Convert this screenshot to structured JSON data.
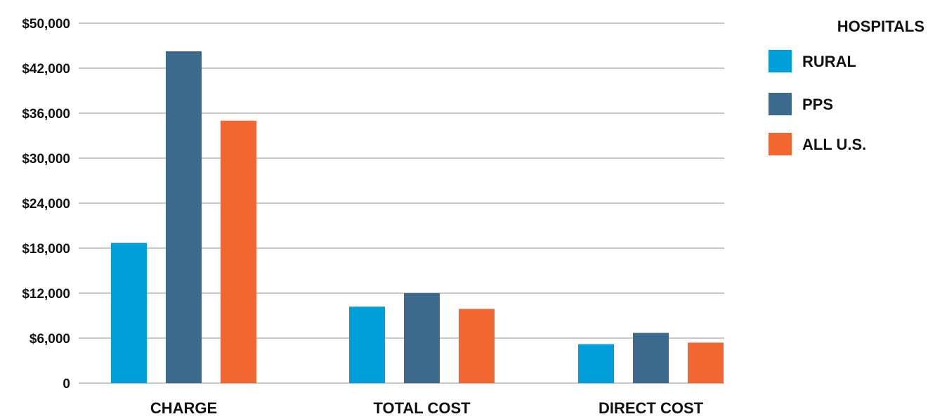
{
  "chart_data": {
    "type": "bar",
    "categories": [
      "CHARGE",
      "TOTAL COST",
      "DIRECT COST"
    ],
    "series": [
      {
        "name": "RURAL",
        "color": "#009FD9",
        "values": [
          18700,
          10200,
          5200
        ]
      },
      {
        "name": "PPS",
        "color": "#3B6A8C",
        "values": [
          45000,
          12000,
          6700
        ]
      },
      {
        "name": "ALL U.S.",
        "color": "#F26631",
        "values": [
          35000,
          9900,
          5400
        ]
      }
    ],
    "y_ticks": [
      {
        "value": 0,
        "label": "0"
      },
      {
        "value": 6000,
        "label": "$6,000"
      },
      {
        "value": 12000,
        "label": "$12,000"
      },
      {
        "value": 18000,
        "label": "$18,000"
      },
      {
        "value": 24000,
        "label": "$24,000"
      },
      {
        "value": 30000,
        "label": "$30,000"
      },
      {
        "value": 36000,
        "label": "$36,000"
      },
      {
        "value": 42000,
        "label": "$42,000"
      },
      {
        "value": 50000,
        "label": "$50,000"
      }
    ],
    "ylim": [
      0,
      50000
    ],
    "legend": {
      "title": "HOSPITALS",
      "position": "right"
    },
    "grid": true,
    "gridline_color": "#8C8C8C"
  }
}
